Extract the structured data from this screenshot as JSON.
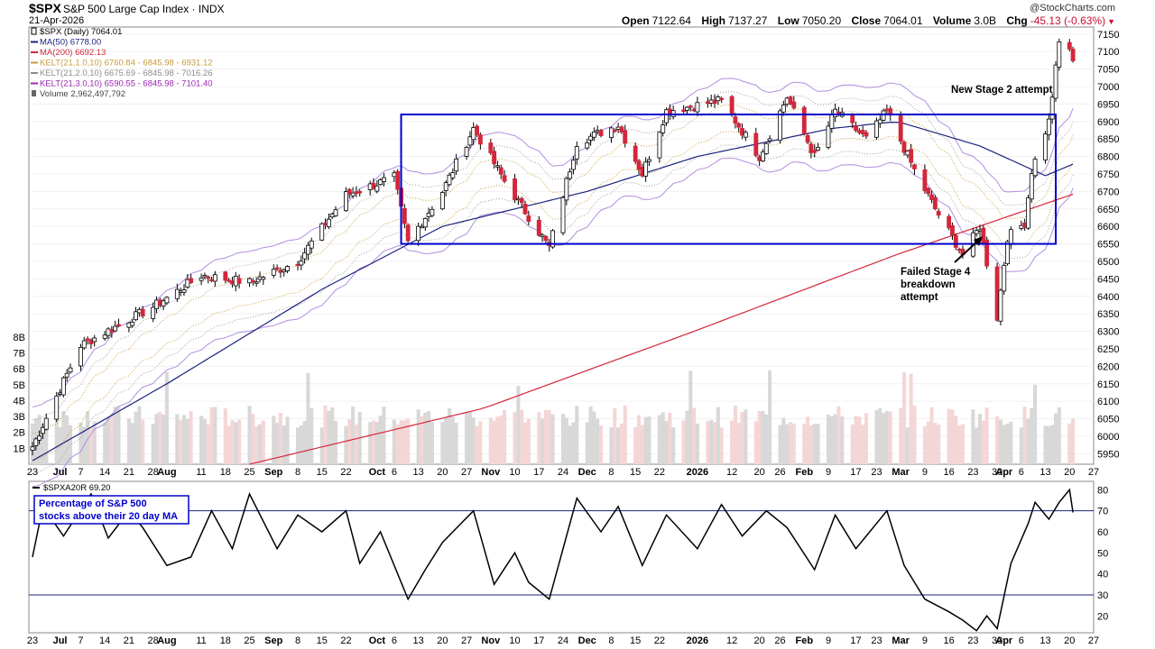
{
  "header": {
    "symbol": "$SPX",
    "name": "S&P 500 Large Cap Index",
    "exchange": "INDX",
    "date": "21-Apr-2026",
    "brand": "@StockCharts.com",
    "open_label": "Open",
    "open": "7122.64",
    "high_label": "High",
    "high": "7137.27",
    "low_label": "Low",
    "low": "7050.20",
    "close_label": "Close",
    "close": "7064.01",
    "volume_label": "Volume",
    "volume": "3.0B",
    "chg_label": "Chg",
    "chg": "-45.13 (-0.63%)"
  },
  "legend": [
    {
      "text": "$SPX (Daily) 7064.01",
      "color": "#000000",
      "icon": "candle-icon"
    },
    {
      "text": "MA(50) 6778.00",
      "color": "#1a237e",
      "icon": "line-icon"
    },
    {
      "text": "MA(200) 6692.13",
      "color": "#d3273b",
      "icon": "line-icon"
    },
    {
      "text": "KELT(21,1.0,10) 6760.84 - 6845.98 - 6931.12",
      "color": "#c89c3c",
      "icon": "line-icon"
    },
    {
      "text": "KELT(21,2.0,10) 6675.69 - 6845.98 - 7016.26",
      "color": "#8c8c8c",
      "icon": "line-icon"
    },
    {
      "text": "KELT(21,3.0,10) 6590.55 - 6845.98 - 7101.40",
      "color": "#9c27b0",
      "icon": "line-icon"
    },
    {
      "text": "Volume 2,962,497,792",
      "color": "#444444",
      "icon": "volume-icon"
    }
  ],
  "sub_legend": "$SPXA20R 69.20",
  "annotations": {
    "stage2": "New Stage 2 attempt",
    "stage4": [
      "Failed Stage 4",
      "breakdown",
      "attempt"
    ],
    "pct_note": [
      "Percentage of S&P 500",
      "stocks above their 20 day MA"
    ]
  },
  "chart_data": [
    {
      "type": "candlestick",
      "title": "$SPX (Daily) 7064.01",
      "ylim": [
        5920,
        7170
      ],
      "y_ticks": [
        5950,
        6000,
        6050,
        6100,
        6150,
        6200,
        6250,
        6300,
        6350,
        6400,
        6450,
        6500,
        6550,
        6600,
        6650,
        6700,
        6750,
        6800,
        6850,
        6900,
        6950,
        7000,
        7050,
        7100,
        7150
      ],
      "volume_ticks": [
        "1B",
        "2B",
        "3B",
        "4B",
        "5B",
        "6B",
        "7B",
        "8B"
      ],
      "x_ticks": [
        "23",
        "Jul",
        "7",
        "14",
        "21",
        "28",
        "Aug",
        "11",
        "18",
        "25",
        "Sep",
        "8",
        "15",
        "22",
        "Oct",
        "6",
        "13",
        "20",
        "27",
        "Nov",
        "10",
        "17",
        "24",
        "Dec",
        "8",
        "15",
        "22",
        "2026",
        "12",
        "20",
        "26",
        "Feb",
        "9",
        "17",
        "23",
        "Mar",
        "9",
        "16",
        "23",
        "30",
        "Apr",
        "6",
        "13",
        "20",
        "27"
      ],
      "anchors": [
        {
          "date": "2025-06-23",
          "close": 5970
        },
        {
          "date": "2025-07-07",
          "close": 6260
        },
        {
          "date": "2025-07-28",
          "close": 6370
        },
        {
          "date": "2025-08-11",
          "close": 6460
        },
        {
          "date": "2025-08-25",
          "close": 6440
        },
        {
          "date": "2025-09-08",
          "close": 6500
        },
        {
          "date": "2025-09-22",
          "close": 6690
        },
        {
          "date": "2025-10-06",
          "close": 6740
        },
        {
          "date": "2025-10-10",
          "close": 6555
        },
        {
          "date": "2025-10-20",
          "close": 6700
        },
        {
          "date": "2025-10-29",
          "close": 6880
        },
        {
          "date": "2025-11-07",
          "close": 6730
        },
        {
          "date": "2025-11-20",
          "close": 6540
        },
        {
          "date": "2025-11-28",
          "close": 6840
        },
        {
          "date": "2025-12-10",
          "close": 6890
        },
        {
          "date": "2025-12-17",
          "close": 6750
        },
        {
          "date": "2025-12-24",
          "close": 6930
        },
        {
          "date": "2026-01-09",
          "close": 6960
        },
        {
          "date": "2026-01-20",
          "close": 6800
        },
        {
          "date": "2026-01-28",
          "close": 6970
        },
        {
          "date": "2026-02-05",
          "close": 6800
        },
        {
          "date": "2026-02-11",
          "close": 6930
        },
        {
          "date": "2026-02-20",
          "close": 6850
        },
        {
          "date": "2026-02-26",
          "close": 6930
        },
        {
          "date": "2026-03-06",
          "close": 6760
        },
        {
          "date": "2026-03-12",
          "close": 6650
        },
        {
          "date": "2026-03-20",
          "close": 6520
        },
        {
          "date": "2026-03-25",
          "close": 6600
        },
        {
          "date": "2026-03-30",
          "close": 6340
        },
        {
          "date": "2026-04-02",
          "close": 6570
        },
        {
          "date": "2026-04-07",
          "close": 6610
        },
        {
          "date": "2026-04-09",
          "close": 6760
        },
        {
          "date": "2026-04-14",
          "close": 6900
        },
        {
          "date": "2026-04-17",
          "close": 7125
        },
        {
          "date": "2026-04-20",
          "close": 7110
        },
        {
          "date": "2026-04-21",
          "close": 7064
        }
      ],
      "ma50_anchors": [
        {
          "date": "2025-06-23",
          "value": 5930
        },
        {
          "date": "2025-08-01",
          "value": 6150
        },
        {
          "date": "2025-09-15",
          "value": 6420
        },
        {
          "date": "2025-10-20",
          "value": 6600
        },
        {
          "date": "2025-12-01",
          "value": 6700
        },
        {
          "date": "2026-01-02",
          "value": 6800
        },
        {
          "date": "2026-02-10",
          "value": 6880
        },
        {
          "date": "2026-03-01",
          "value": 6900
        },
        {
          "date": "2026-03-25",
          "value": 6830
        },
        {
          "date": "2026-04-13",
          "value": 6745
        },
        {
          "date": "2026-04-21",
          "value": 6778
        }
      ],
      "ma200_anchors": [
        {
          "date": "2025-08-25",
          "value": 5920
        },
        {
          "date": "2025-11-01",
          "value": 6080
        },
        {
          "date": "2026-01-01",
          "value": 6300
        },
        {
          "date": "2026-03-01",
          "value": 6520
        },
        {
          "date": "2026-04-21",
          "value": 6692
        }
      ],
      "box": {
        "start": "2025-10-08",
        "end": "2026-04-16",
        "low": 6550,
        "high": 6920
      },
      "volume_ylim": [
        0,
        8.5
      ]
    },
    {
      "type": "line",
      "title": "$SPXA20R 69.20",
      "ylim": [
        12,
        84
      ],
      "y_ticks": [
        20,
        30,
        40,
        50,
        60,
        70,
        80
      ],
      "reference_lines": [
        30,
        70
      ],
      "anchors": [
        {
          "date": "2025-06-23",
          "value": 48
        },
        {
          "date": "2025-06-26",
          "value": 72
        },
        {
          "date": "2025-07-02",
          "value": 58
        },
        {
          "date": "2025-07-10",
          "value": 78
        },
        {
          "date": "2025-07-15",
          "value": 57
        },
        {
          "date": "2025-07-21",
          "value": 70
        },
        {
          "date": "2025-07-25",
          "value": 62
        },
        {
          "date": "2025-08-01",
          "value": 44
        },
        {
          "date": "2025-08-08",
          "value": 48
        },
        {
          "date": "2025-08-14",
          "value": 70
        },
        {
          "date": "2025-08-20",
          "value": 52
        },
        {
          "date": "2025-08-25",
          "value": 78
        },
        {
          "date": "2025-09-02",
          "value": 52
        },
        {
          "date": "2025-09-08",
          "value": 68
        },
        {
          "date": "2025-09-15",
          "value": 60
        },
        {
          "date": "2025-09-22",
          "value": 70
        },
        {
          "date": "2025-09-26",
          "value": 45
        },
        {
          "date": "2025-10-02",
          "value": 60
        },
        {
          "date": "2025-10-10",
          "value": 28
        },
        {
          "date": "2025-10-15",
          "value": 42
        },
        {
          "date": "2025-10-20",
          "value": 55
        },
        {
          "date": "2025-10-29",
          "value": 70
        },
        {
          "date": "2025-11-04",
          "value": 35
        },
        {
          "date": "2025-11-10",
          "value": 50
        },
        {
          "date": "2025-11-14",
          "value": 36
        },
        {
          "date": "2025-11-20",
          "value": 28
        },
        {
          "date": "2025-11-28",
          "value": 76
        },
        {
          "date": "2025-12-05",
          "value": 60
        },
        {
          "date": "2025-12-10",
          "value": 72
        },
        {
          "date": "2025-12-17",
          "value": 44
        },
        {
          "date": "2025-12-24",
          "value": 68
        },
        {
          "date": "2026-01-02",
          "value": 52
        },
        {
          "date": "2026-01-09",
          "value": 73
        },
        {
          "date": "2026-01-15",
          "value": 58
        },
        {
          "date": "2026-01-22",
          "value": 70
        },
        {
          "date": "2026-01-28",
          "value": 62
        },
        {
          "date": "2026-02-05",
          "value": 42
        },
        {
          "date": "2026-02-11",
          "value": 68
        },
        {
          "date": "2026-02-17",
          "value": 52
        },
        {
          "date": "2026-02-26",
          "value": 70
        },
        {
          "date": "2026-03-03",
          "value": 44
        },
        {
          "date": "2026-03-09",
          "value": 28
        },
        {
          "date": "2026-03-16",
          "value": 22
        },
        {
          "date": "2026-03-20",
          "value": 18
        },
        {
          "date": "2026-03-24",
          "value": 13
        },
        {
          "date": "2026-03-27",
          "value": 20
        },
        {
          "date": "2026-03-30",
          "value": 14
        },
        {
          "date": "2026-04-03",
          "value": 45
        },
        {
          "date": "2026-04-08",
          "value": 64
        },
        {
          "date": "2026-04-10",
          "value": 74
        },
        {
          "date": "2026-04-14",
          "value": 66
        },
        {
          "date": "2026-04-17",
          "value": 74
        },
        {
          "date": "2026-04-20",
          "value": 80
        },
        {
          "date": "2026-04-21",
          "value": 69.2
        }
      ]
    }
  ],
  "colors": {
    "up": "#ffffff",
    "up_stroke": "#000000",
    "down": "#d3273b",
    "ma50": "#1a237e",
    "ma200": "#d3273b",
    "box": "#0000cc",
    "kelt1": "#c89c3c",
    "kelt2": "#9e9e9e",
    "kelt3": "#b28ee0",
    "volume_up": "#d8d8d8",
    "volume_down": "#f4d6d6"
  }
}
